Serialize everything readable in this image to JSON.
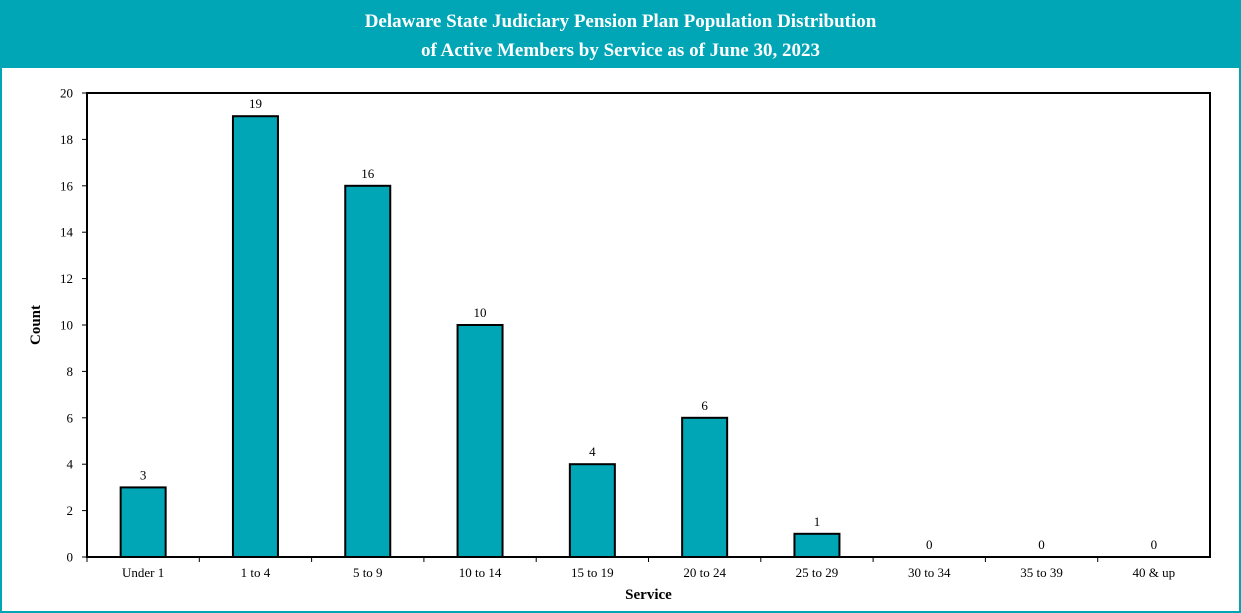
{
  "colors": {
    "accent": "#00A6B6",
    "bar_stroke": "#000000"
  },
  "header": {
    "title_line1": "Delaware State Judiciary Pension Plan Population Distribution",
    "title_line2": "of Active Members by Service as of June 30, 2023"
  },
  "chart_data": {
    "type": "bar",
    "title": "Delaware State Judiciary Pension Plan Population Distribution of Active Members by Service as of June 30, 2023",
    "xlabel": "Service",
    "ylabel": "Count",
    "categories": [
      "Under 1",
      "1 to 4",
      "5 to 9",
      "10 to 14",
      "15 to 19",
      "20 to 24",
      "25 to 29",
      "30 to 34",
      "35 to 39",
      "40 & up"
    ],
    "values": [
      3,
      19,
      16,
      10,
      4,
      6,
      1,
      0,
      0,
      0
    ],
    "ylim": [
      0,
      20
    ],
    "yticks": [
      0,
      2,
      4,
      6,
      8,
      10,
      12,
      14,
      16,
      18,
      20
    ],
    "grid": false,
    "legend": "none",
    "data_labels": true
  }
}
